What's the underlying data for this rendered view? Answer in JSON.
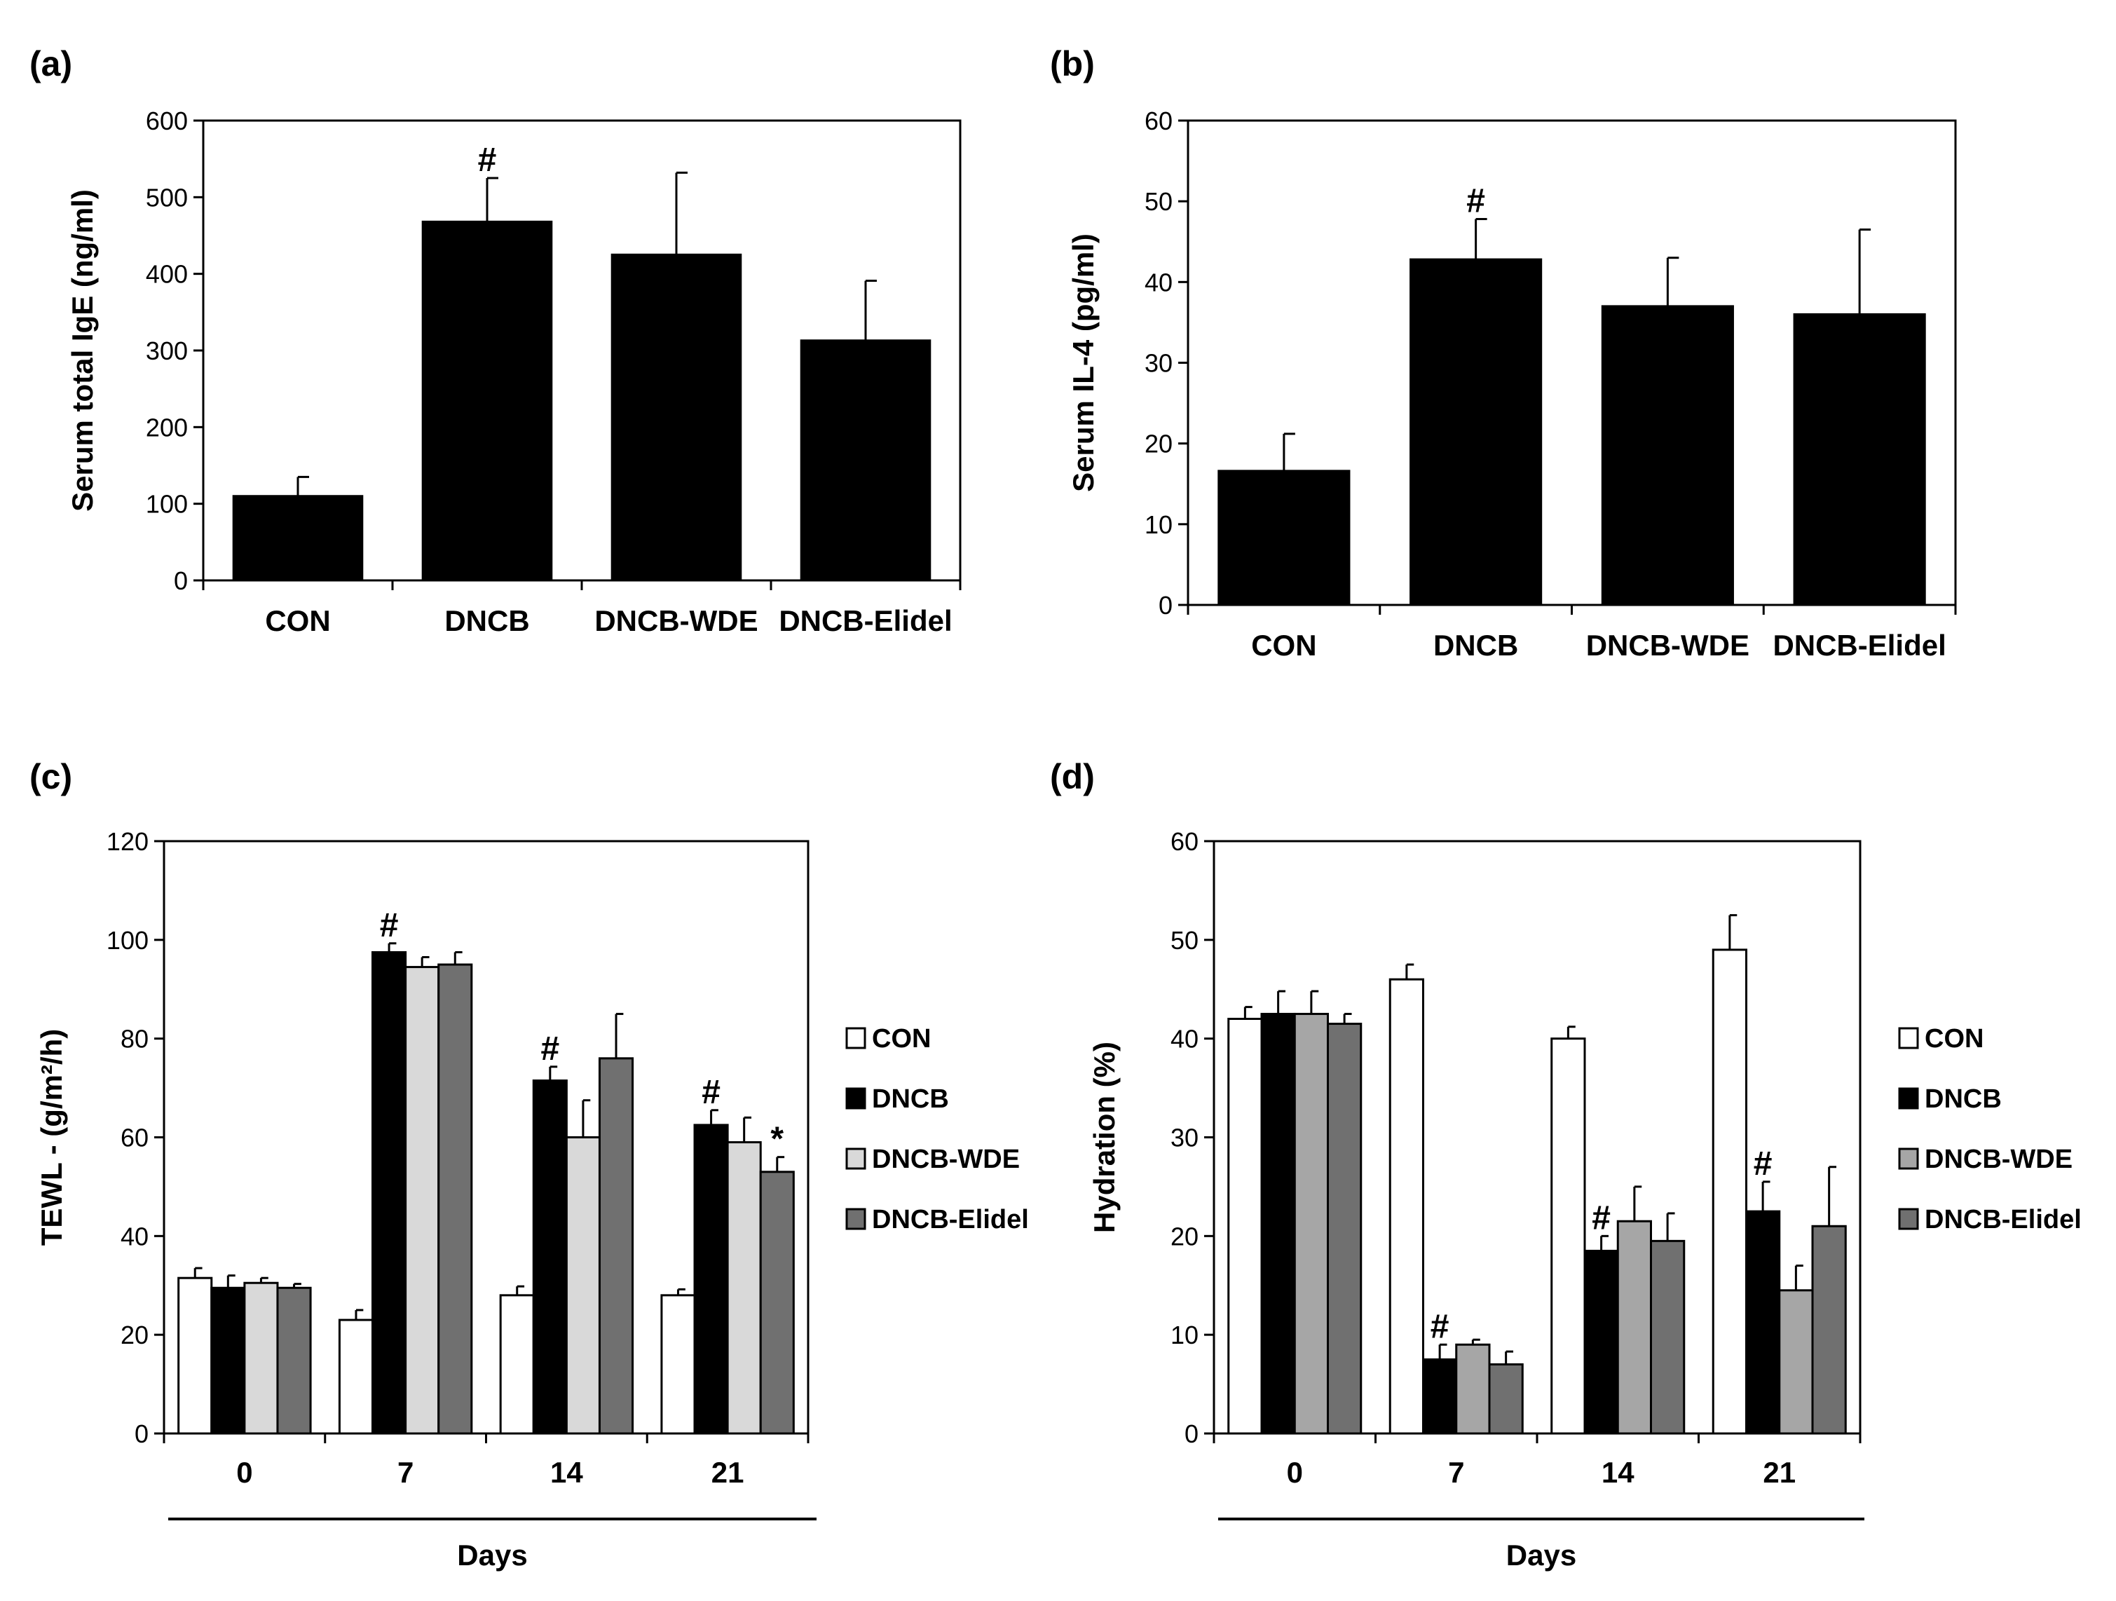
{
  "chart_data": [
    {
      "panel": "(a)",
      "type": "bar",
      "ylabel": "Serum total IgE (ng/ml)",
      "ylim": [
        0,
        600
      ],
      "yticks": [
        "0",
        "100",
        "200",
        "300",
        "400",
        "500",
        "600"
      ],
      "categories": [
        "CON",
        "DNCB",
        "DNCB-WDE",
        "DNCB-Elidel"
      ],
      "values": [
        110,
        468,
        425,
        313
      ],
      "errors": [
        25,
        57,
        107,
        78
      ],
      "markers": [
        "",
        "#",
        "",
        ""
      ],
      "color": "#000000"
    },
    {
      "panel": "(b)",
      "type": "bar",
      "ylabel": "Serum IL-4 (pg/ml)",
      "ylim": [
        0,
        60
      ],
      "yticks": [
        "0",
        "10",
        "20",
        "30",
        "40",
        "50",
        "60"
      ],
      "categories": [
        "CON",
        "DNCB",
        "DNCB-WDE",
        "DNCB-Elidel"
      ],
      "values": [
        16.6,
        42.8,
        37.0,
        36.0
      ],
      "errors": [
        4.6,
        5.0,
        6.0,
        10.5
      ],
      "markers": [
        "",
        "#",
        "",
        ""
      ],
      "color": "#000000"
    },
    {
      "panel": "(c)",
      "type": "bar",
      "ylabel": "TEWL - (g/m²/h)",
      "xlabel": "Days",
      "ylim": [
        0,
        120
      ],
      "yticks": [
        "0",
        "20",
        "40",
        "60",
        "80",
        "100",
        "120"
      ],
      "categories": [
        "0",
        "7",
        "14",
        "21"
      ],
      "series": [
        {
          "name": "CON",
          "color": "#ffffff",
          "values": [
            31.5,
            23.0,
            28.0,
            28.0
          ],
          "errors": [
            2.0,
            2.0,
            1.8,
            1.2
          ],
          "markers": [
            "",
            "",
            "",
            ""
          ]
        },
        {
          "name": "DNCB",
          "color": "#000000",
          "values": [
            29.5,
            97.5,
            71.5,
            62.5
          ],
          "errors": [
            2.5,
            1.8,
            2.8,
            3.0
          ],
          "markers": [
            "",
            "#",
            "#",
            "#"
          ]
        },
        {
          "name": "DNCB-WDE",
          "color": "#d9d9d9",
          "values": [
            30.5,
            94.5,
            60.0,
            59.0
          ],
          "errors": [
            1.0,
            2.0,
            7.5,
            5.0
          ],
          "markers": [
            "",
            "",
            "",
            ""
          ]
        },
        {
          "name": "DNCB-Elidel",
          "color": "#707070",
          "values": [
            29.5,
            95.0,
            76.0,
            53.0
          ],
          "errors": [
            0.8,
            2.5,
            9.0,
            3.0
          ],
          "markers": [
            "",
            "",
            "",
            "*"
          ]
        }
      ]
    },
    {
      "panel": "(d)",
      "type": "bar",
      "ylabel": "Hydration (%)",
      "xlabel": "Days",
      "ylim": [
        0,
        60
      ],
      "yticks": [
        "0",
        "10",
        "20",
        "30",
        "40",
        "50",
        "60"
      ],
      "categories": [
        "0",
        "7",
        "14",
        "21"
      ],
      "series": [
        {
          "name": "CON",
          "color": "#ffffff",
          "values": [
            42.0,
            46.0,
            40.0,
            49.0
          ],
          "errors": [
            1.2,
            1.5,
            1.2,
            3.5
          ],
          "markers": [
            "",
            "",
            "",
            ""
          ]
        },
        {
          "name": "DNCB",
          "color": "#000000",
          "values": [
            42.5,
            7.5,
            18.5,
            22.5
          ],
          "errors": [
            2.3,
            1.5,
            1.5,
            3.0
          ],
          "markers": [
            "",
            "#",
            "#",
            "#"
          ]
        },
        {
          "name": "DNCB-WDE",
          "color": "#a6a6a6",
          "values": [
            42.5,
            9.0,
            21.5,
            14.5
          ],
          "errors": [
            2.3,
            0.5,
            3.5,
            2.5
          ],
          "markers": [
            "",
            "",
            "",
            ""
          ]
        },
        {
          "name": "DNCB-Elidel",
          "color": "#707070",
          "values": [
            41.5,
            7.0,
            19.5,
            21.0
          ],
          "errors": [
            1.0,
            1.3,
            2.8,
            6.0
          ],
          "markers": [
            "",
            "",
            "",
            ""
          ]
        }
      ]
    }
  ]
}
